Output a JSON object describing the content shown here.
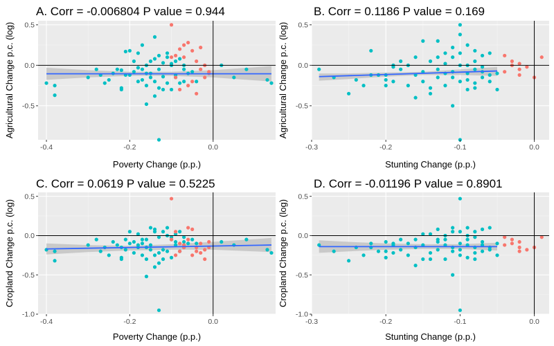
{
  "colors": {
    "panel_bg": "#ebebeb",
    "grid_major": "#ffffff",
    "grid_minor": "#f5f5f5",
    "negative_points": "#00bfc4",
    "positive_points": "#f8766d",
    "fit_line": "#3366ff",
    "ci_band": "#bdbdbd",
    "reference_lines": "#000000",
    "tick_text": "#4d4d4d"
  },
  "chart_data": [
    {
      "type": "scatter",
      "title": "A. Corr = -0.006804  P value = 0.944",
      "xlabel": "Poverty Change (p.p.)",
      "ylabel": "Agricultural Change p.c. (log)",
      "xlim": [
        -0.42,
        0.15
      ],
      "ylim": [
        -0.92,
        0.55
      ],
      "xticks": [
        -0.4,
        -0.2,
        0.0
      ],
      "xtick_labels": [
        "-0.4",
        "-0.2",
        "0.0"
      ],
      "yticks": [
        0.5,
        0.0,
        -0.5
      ],
      "ytick_labels": [
        "0.5",
        "0.0",
        "-0.5"
      ],
      "reference_lines": {
        "x": 0,
        "y": 0
      },
      "fit": {
        "x": [
          -0.4,
          0.14
        ],
        "y": [
          -0.105,
          -0.105
        ]
      },
      "ci": {
        "x": [
          -0.4,
          -0.3,
          -0.2,
          -0.1,
          0.0,
          0.14
        ],
        "upper": [
          -0.03,
          -0.06,
          -0.08,
          -0.08,
          -0.06,
          -0.01
        ],
        "lower": [
          -0.18,
          -0.15,
          -0.13,
          -0.13,
          -0.15,
          -0.2
        ]
      },
      "series": [
        {
          "color_key": "negative_points",
          "x": [
            -0.4,
            -0.38,
            -0.38,
            -0.3,
            -0.28,
            -0.27,
            -0.26,
            -0.25,
            -0.24,
            -0.23,
            -0.22,
            -0.21,
            -0.21,
            -0.2,
            -0.19,
            -0.19,
            -0.18,
            -0.18,
            -0.17,
            -0.17,
            -0.16,
            -0.16,
            -0.15,
            -0.15,
            -0.14,
            -0.14,
            -0.13,
            -0.13,
            -0.12,
            -0.12,
            -0.11,
            -0.11,
            -0.1,
            -0.1,
            -0.09,
            -0.09,
            -0.08,
            -0.08,
            -0.07,
            -0.07,
            -0.06,
            -0.16,
            -0.14,
            -0.12,
            -0.2,
            -0.22,
            -0.17,
            -0.13,
            -0.11,
            -0.09,
            -0.07,
            -0.15,
            -0.18,
            -0.05,
            -0.04,
            -0.13,
            0.02,
            0.05,
            0.08,
            0.14,
            0.13,
            -0.22,
            -0.1,
            -0.16,
            -0.14
          ],
          "y": [
            -0.22,
            -0.37,
            -0.25,
            -0.15,
            -0.05,
            -0.12,
            -0.22,
            -0.18,
            -0.1,
            -0.05,
            -0.28,
            0.17,
            -0.12,
            -0.12,
            -0.08,
            0.05,
            -0.2,
            0.15,
            -0.05,
            -0.18,
            0.0,
            -0.25,
            0.05,
            -0.1,
            0.35,
            -0.2,
            0.12,
            -0.28,
            0.03,
            -0.14,
            0.1,
            -0.22,
            0.0,
            -0.3,
            0.05,
            -0.15,
            0.08,
            -0.22,
            -0.05,
            -0.2,
            -0.1,
            -0.48,
            -0.38,
            -0.3,
            0.18,
            -0.06,
            0.25,
            -0.05,
            0.15,
            -0.12,
            0.0,
            -0.15,
            -0.03,
            -0.08,
            -0.2,
            -0.92,
            0.0,
            -0.15,
            -0.05,
            -0.22,
            -0.18,
            -0.3,
            0.02,
            -0.1,
            0.08
          ]
        },
        {
          "color_key": "positive_points",
          "x": [
            -0.1,
            -0.09,
            -0.08,
            -0.07,
            -0.06,
            -0.05,
            -0.04,
            -0.03,
            -0.02,
            -0.01,
            -0.08,
            -0.06,
            -0.04,
            -0.02,
            -0.07,
            -0.05,
            -0.03,
            -0.01,
            -0.09,
            -0.1
          ],
          "y": [
            0.5,
            0.12,
            0.2,
            0.25,
            0.28,
            0.18,
            0.05,
            0.22,
            0.0,
            -0.1,
            -0.3,
            -0.25,
            -0.35,
            -0.15,
            0.1,
            -0.2,
            -0.05,
            -0.08,
            -0.15,
            0.1
          ]
        }
      ]
    },
    {
      "type": "scatter",
      "title": "B. Corr = 0.1186  P value = 0.169",
      "xlabel": "Stunting Change (p.p.)",
      "ylabel": "Agricultural Change p.c. (log)",
      "xlim": [
        -0.3,
        0.02
      ],
      "ylim": [
        -0.92,
        0.55
      ],
      "xticks": [
        -0.3,
        -0.2,
        -0.1,
        0.0
      ],
      "xtick_labels": [
        "-0.3",
        "-0.2",
        "-0.1",
        "0.0"
      ],
      "yticks": [
        0.5,
        0.0,
        -0.5
      ],
      "ytick_labels": [
        "0.5",
        "0.0",
        "-0.5"
      ],
      "reference_lines": {
        "x": 0,
        "y": 0
      },
      "fit": {
        "x": [
          -0.29,
          -0.05
        ],
        "y": [
          -0.14,
          -0.07
        ]
      },
      "ci": {
        "x": [
          -0.29,
          -0.25,
          -0.2,
          -0.15,
          -0.1,
          -0.05
        ],
        "upper": [
          -0.1,
          -0.1,
          -0.09,
          -0.08,
          -0.05,
          -0.02
        ],
        "lower": [
          -0.19,
          -0.17,
          -0.14,
          -0.12,
          -0.12,
          -0.13
        ]
      },
      "series": [
        {
          "color_key": "negative_points",
          "x": [
            -0.29,
            -0.27,
            -0.25,
            -0.24,
            -0.23,
            -0.22,
            -0.21,
            -0.2,
            -0.2,
            -0.19,
            -0.19,
            -0.18,
            -0.18,
            -0.17,
            -0.17,
            -0.16,
            -0.16,
            -0.15,
            -0.15,
            -0.14,
            -0.14,
            -0.13,
            -0.13,
            -0.12,
            -0.12,
            -0.11,
            -0.11,
            -0.1,
            -0.1,
            -0.1,
            -0.09,
            -0.09,
            -0.09,
            -0.08,
            -0.08,
            -0.08,
            -0.07,
            -0.07,
            -0.07,
            -0.06,
            -0.06,
            -0.05,
            -0.05,
            -0.13,
            -0.11,
            -0.1,
            -0.12,
            -0.14,
            -0.16,
            -0.08,
            -0.06,
            -0.19,
            -0.22,
            -0.13,
            -0.1,
            -0.09,
            -0.11,
            -0.07,
            -0.15,
            -0.2,
            -0.12,
            -0.09,
            -0.1,
            -0.11,
            -0.08
          ],
          "y": [
            -0.05,
            -0.15,
            -0.35,
            -0.18,
            -0.25,
            0.18,
            -0.12,
            -0.12,
            -0.25,
            0.0,
            -0.2,
            -0.05,
            0.05,
            0.0,
            -0.25,
            -0.12,
            0.1,
            -0.08,
            -0.2,
            0.05,
            -0.28,
            0.3,
            -0.15,
            0.15,
            -0.25,
            -0.5,
            0.1,
            0.5,
            0.0,
            -0.2,
            0.25,
            -0.1,
            -0.3,
            0.18,
            -0.05,
            -0.22,
            0.12,
            -0.15,
            -0.08,
            0.15,
            -0.2,
            -0.1,
            -0.3,
            -0.05,
            0.22,
            -0.92,
            0.02,
            -0.35,
            -0.4,
            0.05,
            -0.12,
            -0.02,
            -0.12,
            0.1,
            0.38,
            -0.18,
            -0.08,
            -0.02,
            0.3,
            -0.18,
            -0.1,
            0.0,
            0.15,
            -0.15,
            -0.28
          ]
        },
        {
          "color_key": "positive_points",
          "x": [
            -0.04,
            -0.03,
            -0.03,
            -0.02,
            -0.02,
            -0.01,
            0.0,
            0.01,
            -0.04,
            -0.02
          ],
          "y": [
            0.12,
            0.0,
            0.05,
            -0.05,
            -0.12,
            -0.02,
            -0.15,
            0.1,
            -0.08,
            0.02
          ]
        }
      ]
    },
    {
      "type": "scatter",
      "title": "C. Corr = 0.0619  P value = 0.5225",
      "xlabel": "Poverty Change (p.p.)",
      "ylabel": "Cropland Change p.c. (log)",
      "xlim": [
        -0.42,
        0.15
      ],
      "ylim": [
        -1.0,
        0.55
      ],
      "xticks": [
        -0.4,
        -0.2,
        0.0
      ],
      "xtick_labels": [
        "-0.4",
        "-0.2",
        "0.0"
      ],
      "yticks": [
        0.5,
        0.0,
        -0.5,
        -1.0
      ],
      "ytick_labels": [
        "0.5",
        "0.0",
        "-0.5",
        "-1.0"
      ],
      "reference_lines": {
        "x": 0,
        "y": 0
      },
      "fit": {
        "x": [
          -0.4,
          0.14
        ],
        "y": [
          -0.17,
          -0.12
        ]
      },
      "ci": {
        "x": [
          -0.4,
          -0.3,
          -0.2,
          -0.1,
          0.0,
          0.14
        ],
        "upper": [
          -0.1,
          -0.12,
          -0.13,
          -0.11,
          -0.08,
          -0.03
        ],
        "lower": [
          -0.24,
          -0.21,
          -0.19,
          -0.18,
          -0.18,
          -0.21
        ]
      },
      "series": [
        {
          "color_key": "negative_points",
          "x": [
            -0.4,
            -0.38,
            -0.38,
            -0.3,
            -0.28,
            -0.27,
            -0.26,
            -0.25,
            -0.24,
            -0.23,
            -0.22,
            -0.21,
            -0.21,
            -0.2,
            -0.19,
            -0.19,
            -0.18,
            -0.18,
            -0.17,
            -0.17,
            -0.16,
            -0.16,
            -0.15,
            -0.15,
            -0.14,
            -0.14,
            -0.13,
            -0.13,
            -0.12,
            -0.12,
            -0.11,
            -0.11,
            -0.1,
            -0.1,
            -0.09,
            -0.09,
            -0.08,
            -0.08,
            -0.07,
            -0.07,
            -0.06,
            -0.16,
            -0.14,
            -0.12,
            -0.2,
            -0.22,
            -0.17,
            -0.13,
            -0.11,
            -0.09,
            -0.07,
            -0.15,
            -0.18,
            -0.05,
            -0.04,
            -0.13,
            0.02,
            0.05,
            0.08,
            0.14,
            0.13,
            -0.22,
            -0.1,
            -0.16,
            -0.14
          ],
          "y": [
            -0.18,
            -0.32,
            -0.2,
            -0.12,
            -0.05,
            -0.2,
            -0.15,
            -0.25,
            -0.08,
            -0.12,
            -0.3,
            -0.05,
            -0.18,
            0.05,
            -0.08,
            -0.22,
            0.02,
            -0.15,
            -0.1,
            -0.25,
            -0.05,
            -0.3,
            0.1,
            -0.12,
            0.08,
            -0.25,
            -0.02,
            -0.35,
            0.05,
            -0.18,
            0.1,
            -0.2,
            -0.05,
            -0.28,
            0.02,
            -0.12,
            0.05,
            -0.2,
            -0.08,
            -0.15,
            -0.1,
            -0.52,
            -0.4,
            -0.3,
            -0.1,
            -0.15,
            -0.05,
            -0.95,
            0.0,
            -0.08,
            -0.02,
            -0.18,
            -0.12,
            -0.05,
            -0.1,
            -0.22,
            -0.08,
            -0.12,
            -0.05,
            -0.22,
            -0.18,
            -0.28,
            -0.02,
            -0.15,
            0.05
          ]
        },
        {
          "color_key": "positive_points",
          "x": [
            -0.1,
            -0.09,
            -0.08,
            -0.07,
            -0.06,
            -0.05,
            -0.04,
            -0.03,
            -0.02,
            -0.01,
            -0.08,
            -0.06,
            -0.04,
            -0.02,
            -0.07,
            -0.05,
            -0.03,
            -0.01,
            -0.09,
            -0.1
          ],
          "y": [
            0.47,
            0.05,
            -0.1,
            -0.15,
            0.1,
            -0.25,
            -0.2,
            -0.1,
            -0.3,
            -0.15,
            -0.2,
            -0.05,
            -0.15,
            -0.18,
            -0.12,
            0.08,
            -0.22,
            -0.08,
            -0.25,
            -0.05
          ]
        }
      ]
    },
    {
      "type": "scatter",
      "title": "D. Corr = -0.01196  P value = 0.8901",
      "xlabel": "Stunting Change (p.p.)",
      "ylabel": "Cropland Change p.c. (log)",
      "xlim": [
        -0.3,
        0.02
      ],
      "ylim": [
        -1.0,
        0.55
      ],
      "xticks": [
        -0.3,
        -0.2,
        -0.1,
        0.0
      ],
      "xtick_labels": [
        "-0.3",
        "-0.2",
        "-0.1",
        "0.0"
      ],
      "yticks": [
        0.5,
        0.0,
        -0.5,
        -1.0
      ],
      "ytick_labels": [
        "0.5",
        "0.0",
        "-0.5",
        "-1.0"
      ],
      "reference_lines": {
        "x": 0,
        "y": 0
      },
      "fit": {
        "x": [
          -0.29,
          -0.05
        ],
        "y": [
          -0.14,
          -0.14
        ]
      },
      "ci": {
        "x": [
          -0.29,
          -0.25,
          -0.2,
          -0.15,
          -0.1,
          -0.05
        ],
        "upper": [
          -0.06,
          -0.08,
          -0.1,
          -0.11,
          -0.11,
          -0.09
        ],
        "lower": [
          -0.22,
          -0.2,
          -0.18,
          -0.17,
          -0.17,
          -0.19
        ]
      },
      "series": [
        {
          "color_key": "negative_points",
          "x": [
            -0.29,
            -0.27,
            -0.25,
            -0.24,
            -0.23,
            -0.22,
            -0.21,
            -0.2,
            -0.2,
            -0.19,
            -0.19,
            -0.18,
            -0.18,
            -0.17,
            -0.17,
            -0.16,
            -0.16,
            -0.15,
            -0.15,
            -0.14,
            -0.14,
            -0.13,
            -0.13,
            -0.12,
            -0.12,
            -0.11,
            -0.11,
            -0.1,
            -0.1,
            -0.1,
            -0.09,
            -0.09,
            -0.09,
            -0.08,
            -0.08,
            -0.08,
            -0.07,
            -0.07,
            -0.07,
            -0.06,
            -0.06,
            -0.05,
            -0.05,
            -0.13,
            -0.11,
            -0.1,
            -0.12,
            -0.14,
            -0.16,
            -0.08,
            -0.06,
            -0.19,
            -0.22,
            -0.13,
            -0.1,
            -0.09,
            -0.11,
            -0.07,
            -0.15,
            -0.2,
            -0.12,
            -0.09,
            -0.1,
            -0.11,
            -0.08
          ],
          "y": [
            -0.12,
            -0.2,
            -0.32,
            -0.15,
            -0.25,
            -0.1,
            -0.2,
            -0.08,
            -0.28,
            -0.12,
            -0.22,
            -0.05,
            -0.18,
            -0.1,
            -0.25,
            -0.15,
            -0.05,
            -0.12,
            -0.3,
            0.02,
            -0.22,
            0.08,
            -0.18,
            0.0,
            -0.3,
            -0.5,
            0.05,
            0.47,
            -0.1,
            -0.25,
            0.1,
            -0.05,
            -0.28,
            0.05,
            -0.15,
            -0.3,
            0.08,
            -0.12,
            -0.2,
            0.1,
            -0.18,
            -0.1,
            -0.25,
            -0.08,
            0.1,
            -0.95,
            -0.05,
            -0.3,
            -0.38,
            -0.02,
            -0.15,
            -0.1,
            -0.15,
            -0.05,
            0.05,
            -0.12,
            -0.2,
            -0.08,
            0.02,
            -0.2,
            -0.12,
            0.0,
            -0.18,
            -0.15,
            -0.22
          ]
        },
        {
          "color_key": "positive_points",
          "x": [
            -0.04,
            -0.03,
            -0.03,
            -0.02,
            -0.02,
            -0.01,
            0.0,
            0.01,
            -0.04,
            -0.02
          ],
          "y": [
            -0.02,
            -0.05,
            -0.1,
            -0.15,
            -0.08,
            -0.18,
            -0.15,
            -0.02,
            -0.12,
            -0.2
          ]
        }
      ]
    }
  ]
}
